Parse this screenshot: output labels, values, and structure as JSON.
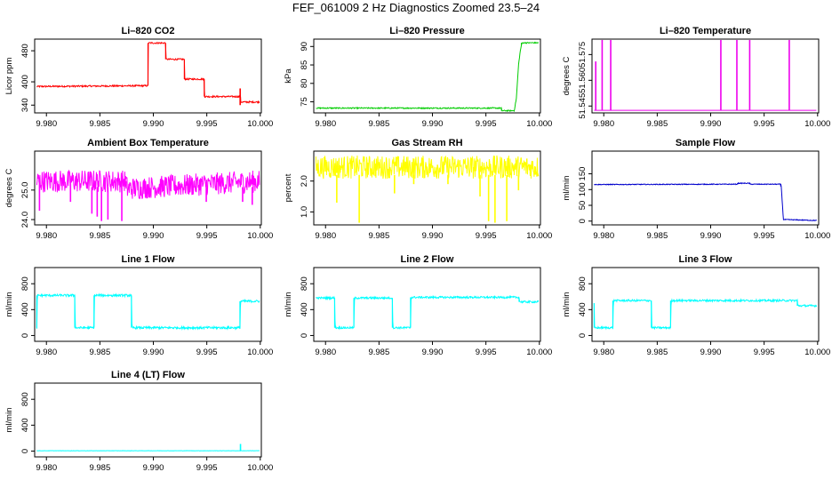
{
  "page_title": "FEF_061009  2 Hz Diagnostics Zoomed 23.5–24",
  "chart_data": [
    {
      "type": "line",
      "title": "Li–820 CO2",
      "ylabel": "Licor ppm",
      "xlim": [
        9.9789,
        10.0001
      ],
      "ylim": [
        320,
        510
      ],
      "xticks": [
        9.98,
        9.985,
        9.99,
        9.995,
        10.0
      ],
      "xtick_labels": [
        "9.980",
        "9.985",
        "9.990",
        "9.995",
        "10.000"
      ],
      "yticks": [
        340,
        400,
        480
      ],
      "ytick_labels": [
        "340",
        "400",
        "480"
      ],
      "color": "#ff0000",
      "noise": 2,
      "x": [
        9.9791,
        9.9895,
        9.98952,
        9.99115,
        9.99117,
        9.9929,
        9.99292,
        9.99476,
        9.99478,
        9.99815,
        9.99817,
        9.99995
      ],
      "y": [
        388,
        390,
        500,
        500,
        458,
        458,
        407,
        407,
        362,
        362,
        348,
        348
      ],
      "spikes": [
        {
          "x": 9.99812,
          "y0": 340,
          "y1": 383
        }
      ]
    },
    {
      "type": "line",
      "title": "Li–820 Pressure",
      "ylabel": "kPa",
      "xlim": [
        9.9789,
        10.0001
      ],
      "ylim": [
        72,
        92
      ],
      "xticks": [
        9.98,
        9.985,
        9.99,
        9.995,
        10.0
      ],
      "xtick_labels": [
        "9.980",
        "9.985",
        "9.990",
        "9.995",
        "10.000"
      ],
      "yticks": [
        75,
        80,
        85,
        90
      ],
      "ytick_labels": [
        "75",
        "80",
        "85",
        "90"
      ],
      "color": "#00cc00",
      "noise": 0.15,
      "x": [
        9.9791,
        9.99645,
        9.99647,
        9.99765,
        9.99785,
        9.99805,
        9.9982,
        9.99832,
        9.9984,
        9.99995
      ],
      "y": [
        73.3,
        73.3,
        72.6,
        72.6,
        76,
        85,
        88.5,
        90.4,
        91,
        91
      ],
      "spikes": []
    },
    {
      "type": "line",
      "title": "Li–820 Temperature",
      "ylabel": "degrees C",
      "xlim": [
        9.9789,
        10.0001
      ],
      "ylim": [
        51.541,
        51.584
      ],
      "xticks": [
        9.98,
        9.985,
        9.99,
        9.995,
        10.0
      ],
      "xtick_labels": [
        "9.980",
        "9.985",
        "9.990",
        "9.995",
        "10.000"
      ],
      "yticks": [
        51.545,
        51.56,
        51.575
      ],
      "ytick_labels": [
        "51.545",
        "51.560",
        "51.575"
      ],
      "color": "#ee00ee",
      "noise": 0,
      "x": [
        9.9791,
        9.99995
      ],
      "y": [
        51.5425,
        51.5425
      ],
      "spikes": [
        {
          "x": 9.97925,
          "y0": 51.5425,
          "y1": 51.571
        },
        {
          "x": 9.97985,
          "y0": 51.5425,
          "y1": 51.5835
        },
        {
          "x": 9.98065,
          "y0": 51.5425,
          "y1": 51.5835
        },
        {
          "x": 9.99095,
          "y0": 51.5425,
          "y1": 51.5835
        },
        {
          "x": 9.99245,
          "y0": 51.5425,
          "y1": 51.5835
        },
        {
          "x": 9.99365,
          "y0": 51.5425,
          "y1": 51.5835
        },
        {
          "x": 9.99735,
          "y0": 51.5425,
          "y1": 51.5835
        }
      ]
    },
    {
      "type": "line",
      "title": "Ambient Box Temperature",
      "ylabel": "degrees C",
      "xlim": [
        9.9789,
        10.0001
      ],
      "ylim": [
        23.82,
        26.32
      ],
      "xticks": [
        9.98,
        9.985,
        9.99,
        9.995,
        10.0
      ],
      "xtick_labels": [
        "9.980",
        "9.985",
        "9.990",
        "9.995",
        "10.000"
      ],
      "yticks": [
        24.0,
        25.0
      ],
      "ytick_labels": [
        "24.0",
        "25.0"
      ],
      "color": "#ff00ff",
      "noise": 0.38,
      "x": [
        9.9791,
        9.98745,
        9.98755,
        9.99995
      ],
      "y": [
        25.3,
        25.3,
        25.05,
        25.3
      ],
      "spikes": [
        {
          "x": 9.97935,
          "y0": 24.3,
          "y1": 25.3
        },
        {
          "x": 9.98225,
          "y0": 24.6,
          "y1": 25.2
        },
        {
          "x": 9.98425,
          "y0": 24.2,
          "y1": 25.1
        },
        {
          "x": 9.98475,
          "y0": 24.1,
          "y1": 25.1
        },
        {
          "x": 9.98515,
          "y0": 23.95,
          "y1": 25.1
        },
        {
          "x": 9.98575,
          "y0": 24.0,
          "y1": 25.1
        },
        {
          "x": 9.98705,
          "y0": 23.95,
          "y1": 25.1
        },
        {
          "x": 9.99495,
          "y0": 24.6,
          "y1": 25.1
        },
        {
          "x": 9.99835,
          "y0": 24.6,
          "y1": 25.1
        },
        {
          "x": 9.99925,
          "y0": 24.5,
          "y1": 25.1
        }
      ]
    },
    {
      "type": "line",
      "title": "Gas Stream RH",
      "ylabel": "percent",
      "xlim": [
        9.9789,
        10.0001
      ],
      "ylim": [
        0.58,
        2.97
      ],
      "xticks": [
        9.98,
        9.985,
        9.99,
        9.995,
        10.0
      ],
      "xtick_labels": [
        "9.980",
        "9.985",
        "9.990",
        "9.995",
        "10.000"
      ],
      "yticks": [
        1.0,
        2.0
      ],
      "ytick_labels": [
        "1.0",
        "2.0"
      ],
      "color": "#ffff00",
      "noise": 0.38,
      "x": [
        9.9791,
        9.99995
      ],
      "y": [
        2.45,
        2.45
      ],
      "spikes": [
        {
          "x": 9.98105,
          "y0": 1.3,
          "y1": 2.2
        },
        {
          "x": 9.98315,
          "y0": 0.65,
          "y1": 2.2
        },
        {
          "x": 9.98645,
          "y0": 1.6,
          "y1": 2.2
        },
        {
          "x": 9.98825,
          "y0": 1.9,
          "y1": 2.2
        },
        {
          "x": 9.99145,
          "y0": 1.9,
          "y1": 2.2
        },
        {
          "x": 9.99445,
          "y0": 1.5,
          "y1": 2.2
        },
        {
          "x": 9.99525,
          "y0": 0.7,
          "y1": 2.2
        },
        {
          "x": 9.99585,
          "y0": 0.65,
          "y1": 2.2
        },
        {
          "x": 9.99695,
          "y0": 0.7,
          "y1": 2.2
        },
        {
          "x": 9.99805,
          "y0": 1.7,
          "y1": 2.2
        }
      ]
    },
    {
      "type": "line",
      "title": "Sample Flow",
      "ylabel": "ml/min",
      "xlim": [
        9.9789,
        10.0001
      ],
      "ylim": [
        -12,
        222
      ],
      "xticks": [
        9.98,
        9.985,
        9.99,
        9.995,
        10.0
      ],
      "xtick_labels": [
        "9.980",
        "9.985",
        "9.990",
        "9.995",
        "10.000"
      ],
      "yticks": [
        0,
        50,
        100,
        150
      ],
      "ytick_labels": [
        "0",
        "50",
        "100",
        "150"
      ],
      "color": "#0000cc",
      "noise": 1.2,
      "x": [
        9.9791,
        9.9925,
        9.99255,
        9.99365,
        9.9937,
        9.99655,
        9.9966,
        9.9968,
        9.99995
      ],
      "y": [
        116,
        117,
        120,
        120,
        117,
        117,
        110,
        5,
        2
      ],
      "spikes": []
    },
    {
      "type": "line",
      "title": "Line 1 Flow",
      "ylabel": "ml/min",
      "xlim": [
        9.9789,
        10.0001
      ],
      "ylim": [
        -90,
        1050
      ],
      "xticks": [
        9.98,
        9.985,
        9.99,
        9.995,
        10.0
      ],
      "xtick_labels": [
        "9.980",
        "9.985",
        "9.990",
        "9.995",
        "10.000"
      ],
      "yticks": [
        0,
        400,
        800
      ],
      "ytick_labels": [
        "0",
        "400",
        "800"
      ],
      "color": "#00ffff",
      "noise": 18,
      "x": [
        9.9791,
        9.97915,
        9.98265,
        9.9827,
        9.98445,
        9.9845,
        9.98795,
        9.988,
        9.9981,
        9.99815,
        9.99995
      ],
      "y": [
        120,
        620,
        620,
        120,
        120,
        620,
        620,
        120,
        120,
        530,
        530
      ],
      "spikes": []
    },
    {
      "type": "line",
      "title": "Line 2 Flow",
      "ylabel": "ml/min",
      "xlim": [
        9.9789,
        10.0001
      ],
      "ylim": [
        -90,
        1050
      ],
      "xticks": [
        9.98,
        9.985,
        9.99,
        9.995,
        10.0
      ],
      "xtick_labels": [
        "9.980",
        "9.985",
        "9.990",
        "9.995",
        "10.000"
      ],
      "yticks": [
        0,
        400,
        800
      ],
      "ytick_labels": [
        "0",
        "400",
        "800"
      ],
      "color": "#00ffff",
      "noise": 15,
      "x": [
        9.9791,
        9.98085,
        9.9809,
        9.98265,
        9.9827,
        9.98625,
        9.9863,
        9.98795,
        9.988,
        9.9981,
        9.99815,
        9.99995
      ],
      "y": [
        580,
        580,
        120,
        120,
        580,
        580,
        120,
        120,
        590,
        590,
        520,
        520
      ],
      "spikes": []
    },
    {
      "type": "line",
      "title": "Line 3 Flow",
      "ylabel": "ml/min",
      "xlim": [
        9.9789,
        10.0001
      ],
      "ylim": [
        -90,
        1050
      ],
      "xticks": [
        9.98,
        9.985,
        9.99,
        9.995,
        10.0
      ],
      "xtick_labels": [
        "9.980",
        "9.985",
        "9.990",
        "9.995",
        "10.000"
      ],
      "yticks": [
        0,
        400,
        800
      ],
      "ytick_labels": [
        "0",
        "400",
        "800"
      ],
      "color": "#00ffff",
      "noise": 15,
      "x": [
        9.9791,
        9.97912,
        9.98085,
        9.9809,
        9.98445,
        9.9845,
        9.98625,
        9.9863,
        9.9981,
        9.99815,
        9.99995
      ],
      "y": [
        500,
        120,
        120,
        540,
        540,
        120,
        120,
        540,
        540,
        460,
        460
      ],
      "spikes": []
    },
    {
      "type": "line",
      "title": "Line 4 (LT) Flow",
      "ylabel": "ml/min",
      "xlim": [
        9.9789,
        10.0001
      ],
      "ylim": [
        -90,
        1050
      ],
      "xticks": [
        9.98,
        9.985,
        9.99,
        9.995,
        10.0
      ],
      "xtick_labels": [
        "9.980",
        "9.985",
        "9.990",
        "9.995",
        "10.000"
      ],
      "yticks": [
        0,
        400,
        800
      ],
      "ytick_labels": [
        "0",
        "400",
        "800"
      ],
      "color": "#00ffff",
      "noise": 2,
      "x": [
        9.9791,
        9.99995
      ],
      "y": [
        5,
        5
      ],
      "spikes": [
        {
          "x": 9.99815,
          "y0": 5,
          "y1": 110
        }
      ]
    }
  ]
}
